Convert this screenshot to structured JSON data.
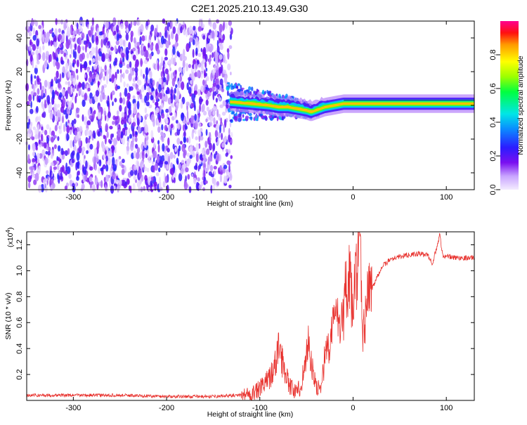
{
  "figure": {
    "title": "C2E1.2025.210.13.49.G30"
  },
  "colorbar": {
    "label": "Normalized spectral amplitude",
    "ticks": [
      "0.0",
      "0.2",
      "0.4",
      "0.6",
      "0.8"
    ],
    "tick_values": [
      0,
      0.2,
      0.4,
      0.6,
      0.8
    ],
    "range": [
      0,
      1
    ]
  },
  "chart_data": [
    {
      "type": "heatmap",
      "xlabel": "Height of straight line (km)",
      "ylabel": "Frequency (Hz)",
      "xlim": [
        -350,
        130
      ],
      "ylim": [
        -50,
        50
      ],
      "xticks": [
        -300,
        -200,
        -100,
        0,
        100
      ],
      "yticks": [
        -40,
        -20,
        0,
        20,
        40
      ],
      "ridge": {
        "x": [
          -130,
          -110,
          -90,
          -80,
          -70,
          -60,
          -50,
          -45,
          -40,
          -30,
          -20,
          -10,
          0,
          20,
          50,
          100,
          130
        ],
        "y": [
          2,
          1,
          0,
          -1,
          -1,
          -2,
          -3,
          -4,
          -3,
          -1,
          0,
          1,
          1,
          1,
          1,
          1,
          1
        ]
      }
    },
    {
      "type": "line",
      "xlabel": "Height of straight line (km)",
      "ylabel": "SNR (10 * v/v)",
      "yscale_label": "(x10",
      "yscale_exp": "4",
      "yscale_close": ")",
      "xlim": [
        -350,
        130
      ],
      "ylim": [
        0,
        1.3
      ],
      "xticks": [
        -300,
        -200,
        -100,
        0,
        100
      ],
      "yticks": [
        0.2,
        0.4,
        0.6,
        0.8,
        1.0,
        1.2
      ],
      "ytick_labels": [
        "0.2",
        "0.4",
        "0.6",
        "0.8",
        "1.0",
        "1.2"
      ],
      "series": [
        {
          "color": "#e8322e",
          "x": [
            -350,
            -300,
            -250,
            -200,
            -150,
            -120,
            -105,
            -95,
            -88,
            -83,
            -80,
            -76,
            -72,
            -68,
            -64,
            -60,
            -56,
            -52,
            -48,
            -45,
            -42,
            -38,
            -35,
            -32,
            -28,
            -25,
            -22,
            -18,
            -15,
            -12,
            -10,
            -8,
            -6,
            -4,
            -2,
            0,
            2,
            4,
            6,
            8,
            10,
            12,
            14,
            16,
            18,
            20,
            22,
            25,
            28,
            32,
            36,
            40,
            50,
            60,
            70,
            80,
            85,
            90,
            93,
            96,
            100,
            110,
            120,
            130
          ],
          "y": [
            0.04,
            0.04,
            0.04,
            0.03,
            0.03,
            0.04,
            0.06,
            0.12,
            0.2,
            0.28,
            0.44,
            0.3,
            0.22,
            0.12,
            0.08,
            0.06,
            0.12,
            0.26,
            0.46,
            0.3,
            0.16,
            0.08,
            0.12,
            0.24,
            0.44,
            0.36,
            0.58,
            0.72,
            0.52,
            0.82,
            0.62,
            0.88,
            0.7,
            0.96,
            0.78,
            0.7,
            0.92,
            1.0,
            1.12,
            1.16,
            0.48,
            0.56,
            0.74,
            0.82,
            0.85,
            0.86,
            0.89,
            0.94,
            0.99,
            1.04,
            1.06,
            1.09,
            1.11,
            1.12,
            1.13,
            1.12,
            1.06,
            1.18,
            1.28,
            1.12,
            1.11,
            1.1,
            1.1,
            1.1
          ]
        }
      ]
    }
  ]
}
